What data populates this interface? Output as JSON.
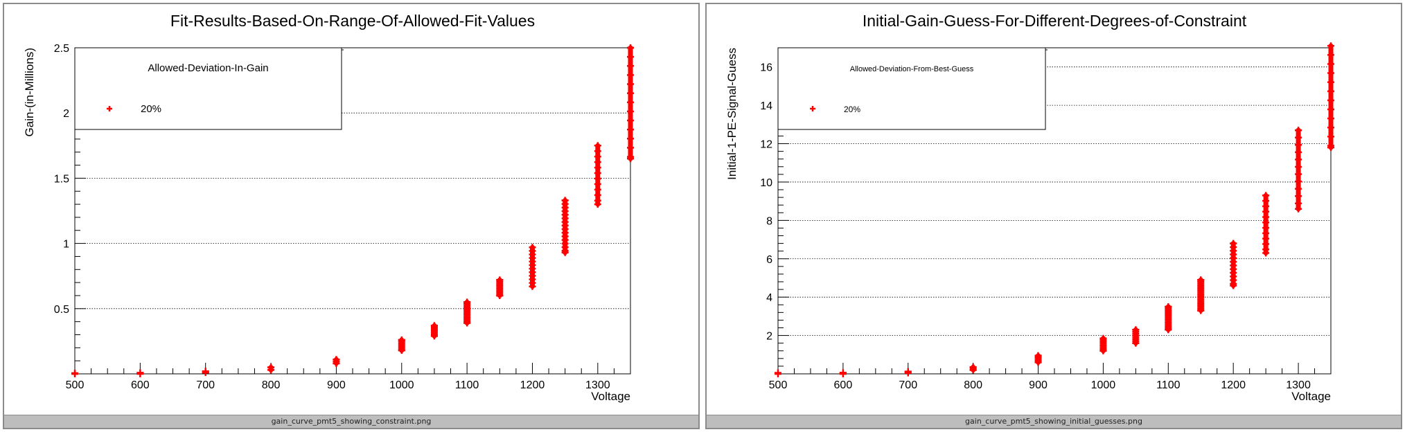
{
  "charts": [
    {
      "status_label": "gain_curve_pmt5_showing_constraint.png",
      "legend_title": "Allowed-Deviation-In-Gain",
      "legend_entry": "20%",
      "chart_data": {
        "type": "scatter",
        "title": "Fit-Results-Based-On-Range-Of-Allowed-Fit-Values",
        "xlabel": "Voltage",
        "ylabel": "Gain-(in-Millions)",
        "xlim": [
          500,
          1350
        ],
        "ylim": [
          0,
          2.5
        ],
        "xticks": [
          500,
          600,
          700,
          800,
          900,
          1000,
          1100,
          1200,
          1300
        ],
        "yticks": [
          0.5,
          1,
          1.5,
          2,
          2.5
        ],
        "ytick_labels": [
          "0.5",
          "1",
          "1.5",
          "2",
          "2.5"
        ],
        "grid": "horizontal",
        "legend_position": "top-left",
        "color": "#ff0000",
        "series": [
          {
            "name": "20%",
            "points": [
              {
                "x": 500,
                "ymin": 0.0,
                "ymax": 0.005
              },
              {
                "x": 600,
                "ymin": 0.0,
                "ymax": 0.008
              },
              {
                "x": 700,
                "ymin": 0.01,
                "ymax": 0.02
              },
              {
                "x": 800,
                "ymin": 0.03,
                "ymax": 0.05
              },
              {
                "x": 900,
                "ymin": 0.08,
                "ymax": 0.11
              },
              {
                "x": 1000,
                "ymin": 0.18,
                "ymax": 0.26
              },
              {
                "x": 1050,
                "ymin": 0.29,
                "ymax": 0.37
              },
              {
                "x": 1100,
                "ymin": 0.39,
                "ymax": 0.55
              },
              {
                "x": 1150,
                "ymin": 0.6,
                "ymax": 0.72
              },
              {
                "x": 1200,
                "ymin": 0.67,
                "ymax": 0.97
              },
              {
                "x": 1250,
                "ymin": 0.93,
                "ymax": 1.33
              },
              {
                "x": 1300,
                "ymin": 1.3,
                "ymax": 1.75
              },
              {
                "x": 1350,
                "ymin": 1.65,
                "ymax": 2.5
              }
            ]
          }
        ]
      }
    },
    {
      "status_label": "gain_curve_pmt5_showing_initial_guesses.png",
      "legend_title": "Allowed-Deviation-From-Best-Guess",
      "legend_entry": "20%",
      "chart_data": {
        "type": "scatter",
        "title": "Initial-Gain-Guess-For-Different-Degrees-of-Constraint",
        "xlabel": "Voltage",
        "ylabel": "Initial-1-PE-Signal-Guess",
        "xlim": [
          500,
          1350
        ],
        "ylim": [
          0,
          17
        ],
        "xticks": [
          500,
          600,
          700,
          800,
          900,
          1000,
          1100,
          1200,
          1300
        ],
        "yticks": [
          2,
          4,
          6,
          8,
          10,
          12,
          14,
          16
        ],
        "ytick_labels": [
          "2",
          "4",
          "6",
          "8",
          "10",
          "12",
          "14",
          "16"
        ],
        "grid": "horizontal",
        "legend_position": "top-left",
        "color": "#ff0000",
        "series": [
          {
            "name": "20%",
            "points": [
              {
                "x": 500,
                "ymin": 0.0,
                "ymax": 0.05
              },
              {
                "x": 600,
                "ymin": 0.0,
                "ymax": 0.06
              },
              {
                "x": 700,
                "ymin": 0.05,
                "ymax": 0.12
              },
              {
                "x": 800,
                "ymin": 0.2,
                "ymax": 0.35
              },
              {
                "x": 900,
                "ymin": 0.6,
                "ymax": 0.95
              },
              {
                "x": 1000,
                "ymin": 1.2,
                "ymax": 1.85
              },
              {
                "x": 1050,
                "ymin": 1.6,
                "ymax": 2.3
              },
              {
                "x": 1100,
                "ymin": 2.3,
                "ymax": 3.5
              },
              {
                "x": 1150,
                "ymin": 3.3,
                "ymax": 4.9
              },
              {
                "x": 1200,
                "ymin": 4.6,
                "ymax": 6.8
              },
              {
                "x": 1250,
                "ymin": 6.3,
                "ymax": 9.3
              },
              {
                "x": 1300,
                "ymin": 8.6,
                "ymax": 12.7
              },
              {
                "x": 1350,
                "ymin": 11.8,
                "ymax": 17.1
              }
            ]
          }
        ]
      }
    }
  ]
}
